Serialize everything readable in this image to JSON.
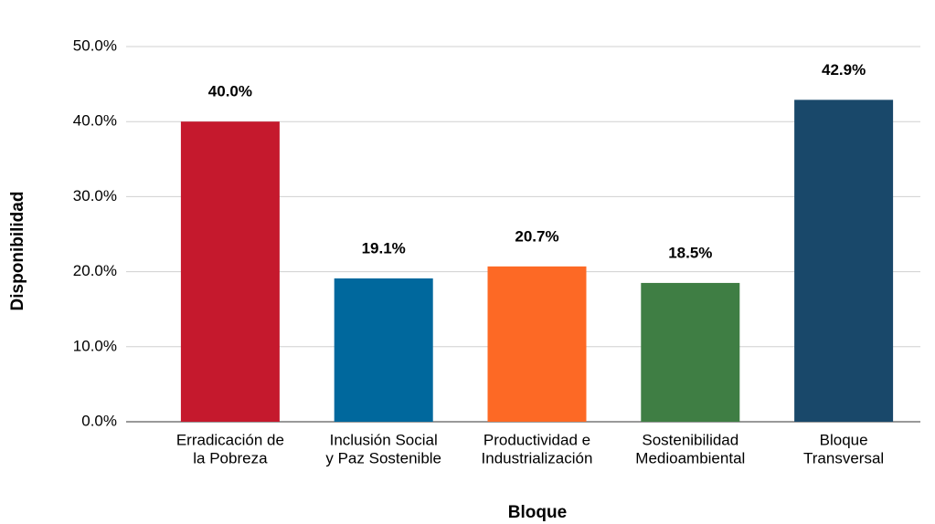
{
  "chart_data": {
    "type": "bar",
    "x_label": "Bloque",
    "y_label": "Disponibilidad",
    "categories": [
      [
        "Erradicación de",
        "la Pobreza"
      ],
      [
        "Inclusión Social",
        "y Paz Sostenible"
      ],
      [
        "Productividad e",
        "Industrialización"
      ],
      [
        "Sostenibilidad",
        "Medioambiental"
      ],
      [
        "Bloque",
        "Transversal"
      ]
    ],
    "values": [
      40.0,
      19.1,
      20.7,
      18.5,
      42.9
    ],
    "value_labels": [
      "40.0%",
      "19.1%",
      "20.7%",
      "18.5%",
      "42.9%"
    ],
    "colors": [
      "#c5192d",
      "#00689d",
      "#fd6925",
      "#3f7e44",
      "#19486a"
    ],
    "ylim": [
      0,
      50
    ],
    "yticks": [
      {
        "value": 0,
        "label": "0.0%"
      },
      {
        "value": 10,
        "label": "10.0%"
      },
      {
        "value": 20,
        "label": "20.0%"
      },
      {
        "value": 30,
        "label": "30.0%"
      },
      {
        "value": 40,
        "label": "40.0%"
      },
      {
        "value": 50,
        "label": "50.0%"
      }
    ],
    "grid": true
  }
}
